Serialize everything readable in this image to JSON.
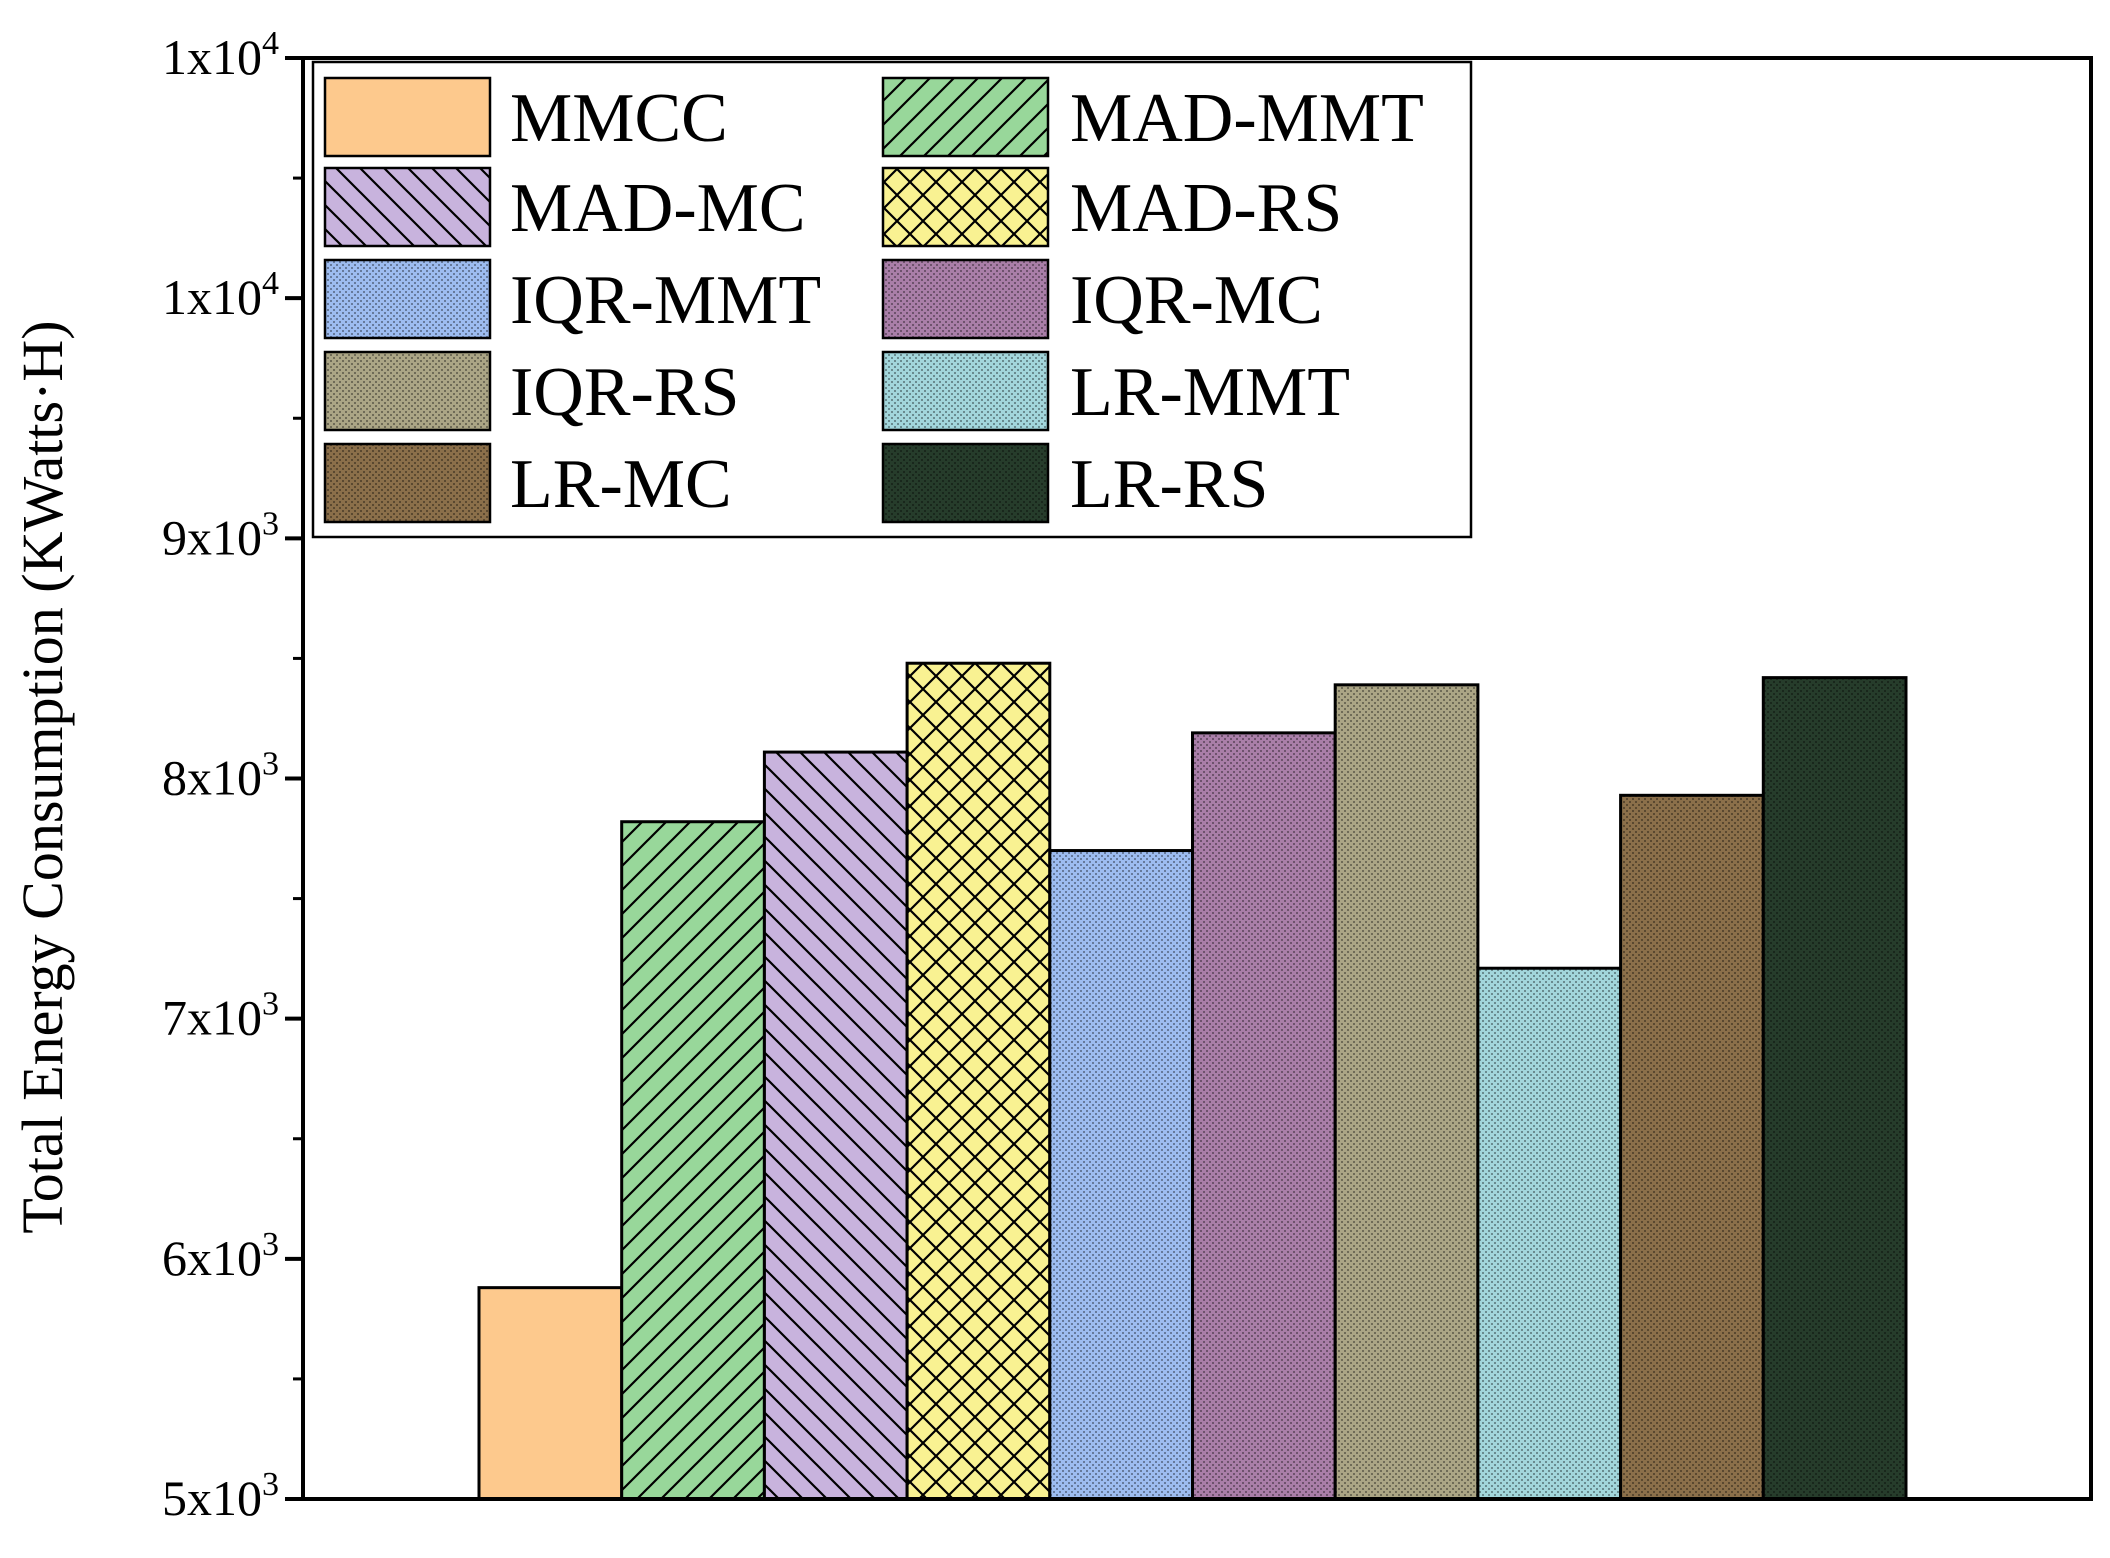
{
  "chart_data": {
    "type": "bar",
    "title": "",
    "xlabel": "",
    "ylabel": "Total Energy Consumption (KWatts·H)",
    "ylim": [
      5000,
      11000
    ],
    "yticks": [
      {
        "value": 5000,
        "base": "5x10",
        "exp": "3"
      },
      {
        "value": 6000,
        "base": "6x10",
        "exp": "3"
      },
      {
        "value": 7000,
        "base": "7x10",
        "exp": "3"
      },
      {
        "value": 8000,
        "base": "8x10",
        "exp": "3"
      },
      {
        "value": 9000,
        "base": "9x10",
        "exp": "3"
      },
      {
        "value": 10000,
        "base": "1x10",
        "exp": "4"
      },
      {
        "value": 11000,
        "base": "1x10",
        "exp": "4"
      }
    ],
    "grid": false,
    "legend_position": "top-left",
    "series": [
      {
        "name": "MMCC",
        "value": 5880,
        "color": "#fdc98d",
        "pattern": "none"
      },
      {
        "name": "MAD-MMT",
        "value": 7820,
        "color": "#98d79a",
        "pattern": "diag-up"
      },
      {
        "name": "MAD-MC",
        "value": 8110,
        "color": "#c8b3dd",
        "pattern": "diag-down"
      },
      {
        "name": "MAD-RS",
        "value": 8480,
        "color": "#f9f292",
        "pattern": "crosshatch"
      },
      {
        "name": "IQR-MMT",
        "value": 7700,
        "color": "#9dbcf0",
        "pattern": "dots"
      },
      {
        "name": "IQR-MC",
        "value": 8190,
        "color": "#a97ea8",
        "pattern": "dots"
      },
      {
        "name": "IQR-RS",
        "value": 8390,
        "color": "#aba585",
        "pattern": "dots"
      },
      {
        "name": "LR-MMT",
        "value": 7210,
        "color": "#a2d6db",
        "pattern": "dots"
      },
      {
        "name": "LR-MC",
        "value": 7930,
        "color": "#8b6f4a",
        "pattern": "dots"
      },
      {
        "name": "LR-RS",
        "value": 8420,
        "color": "#263c2b",
        "pattern": "dots"
      }
    ]
  }
}
